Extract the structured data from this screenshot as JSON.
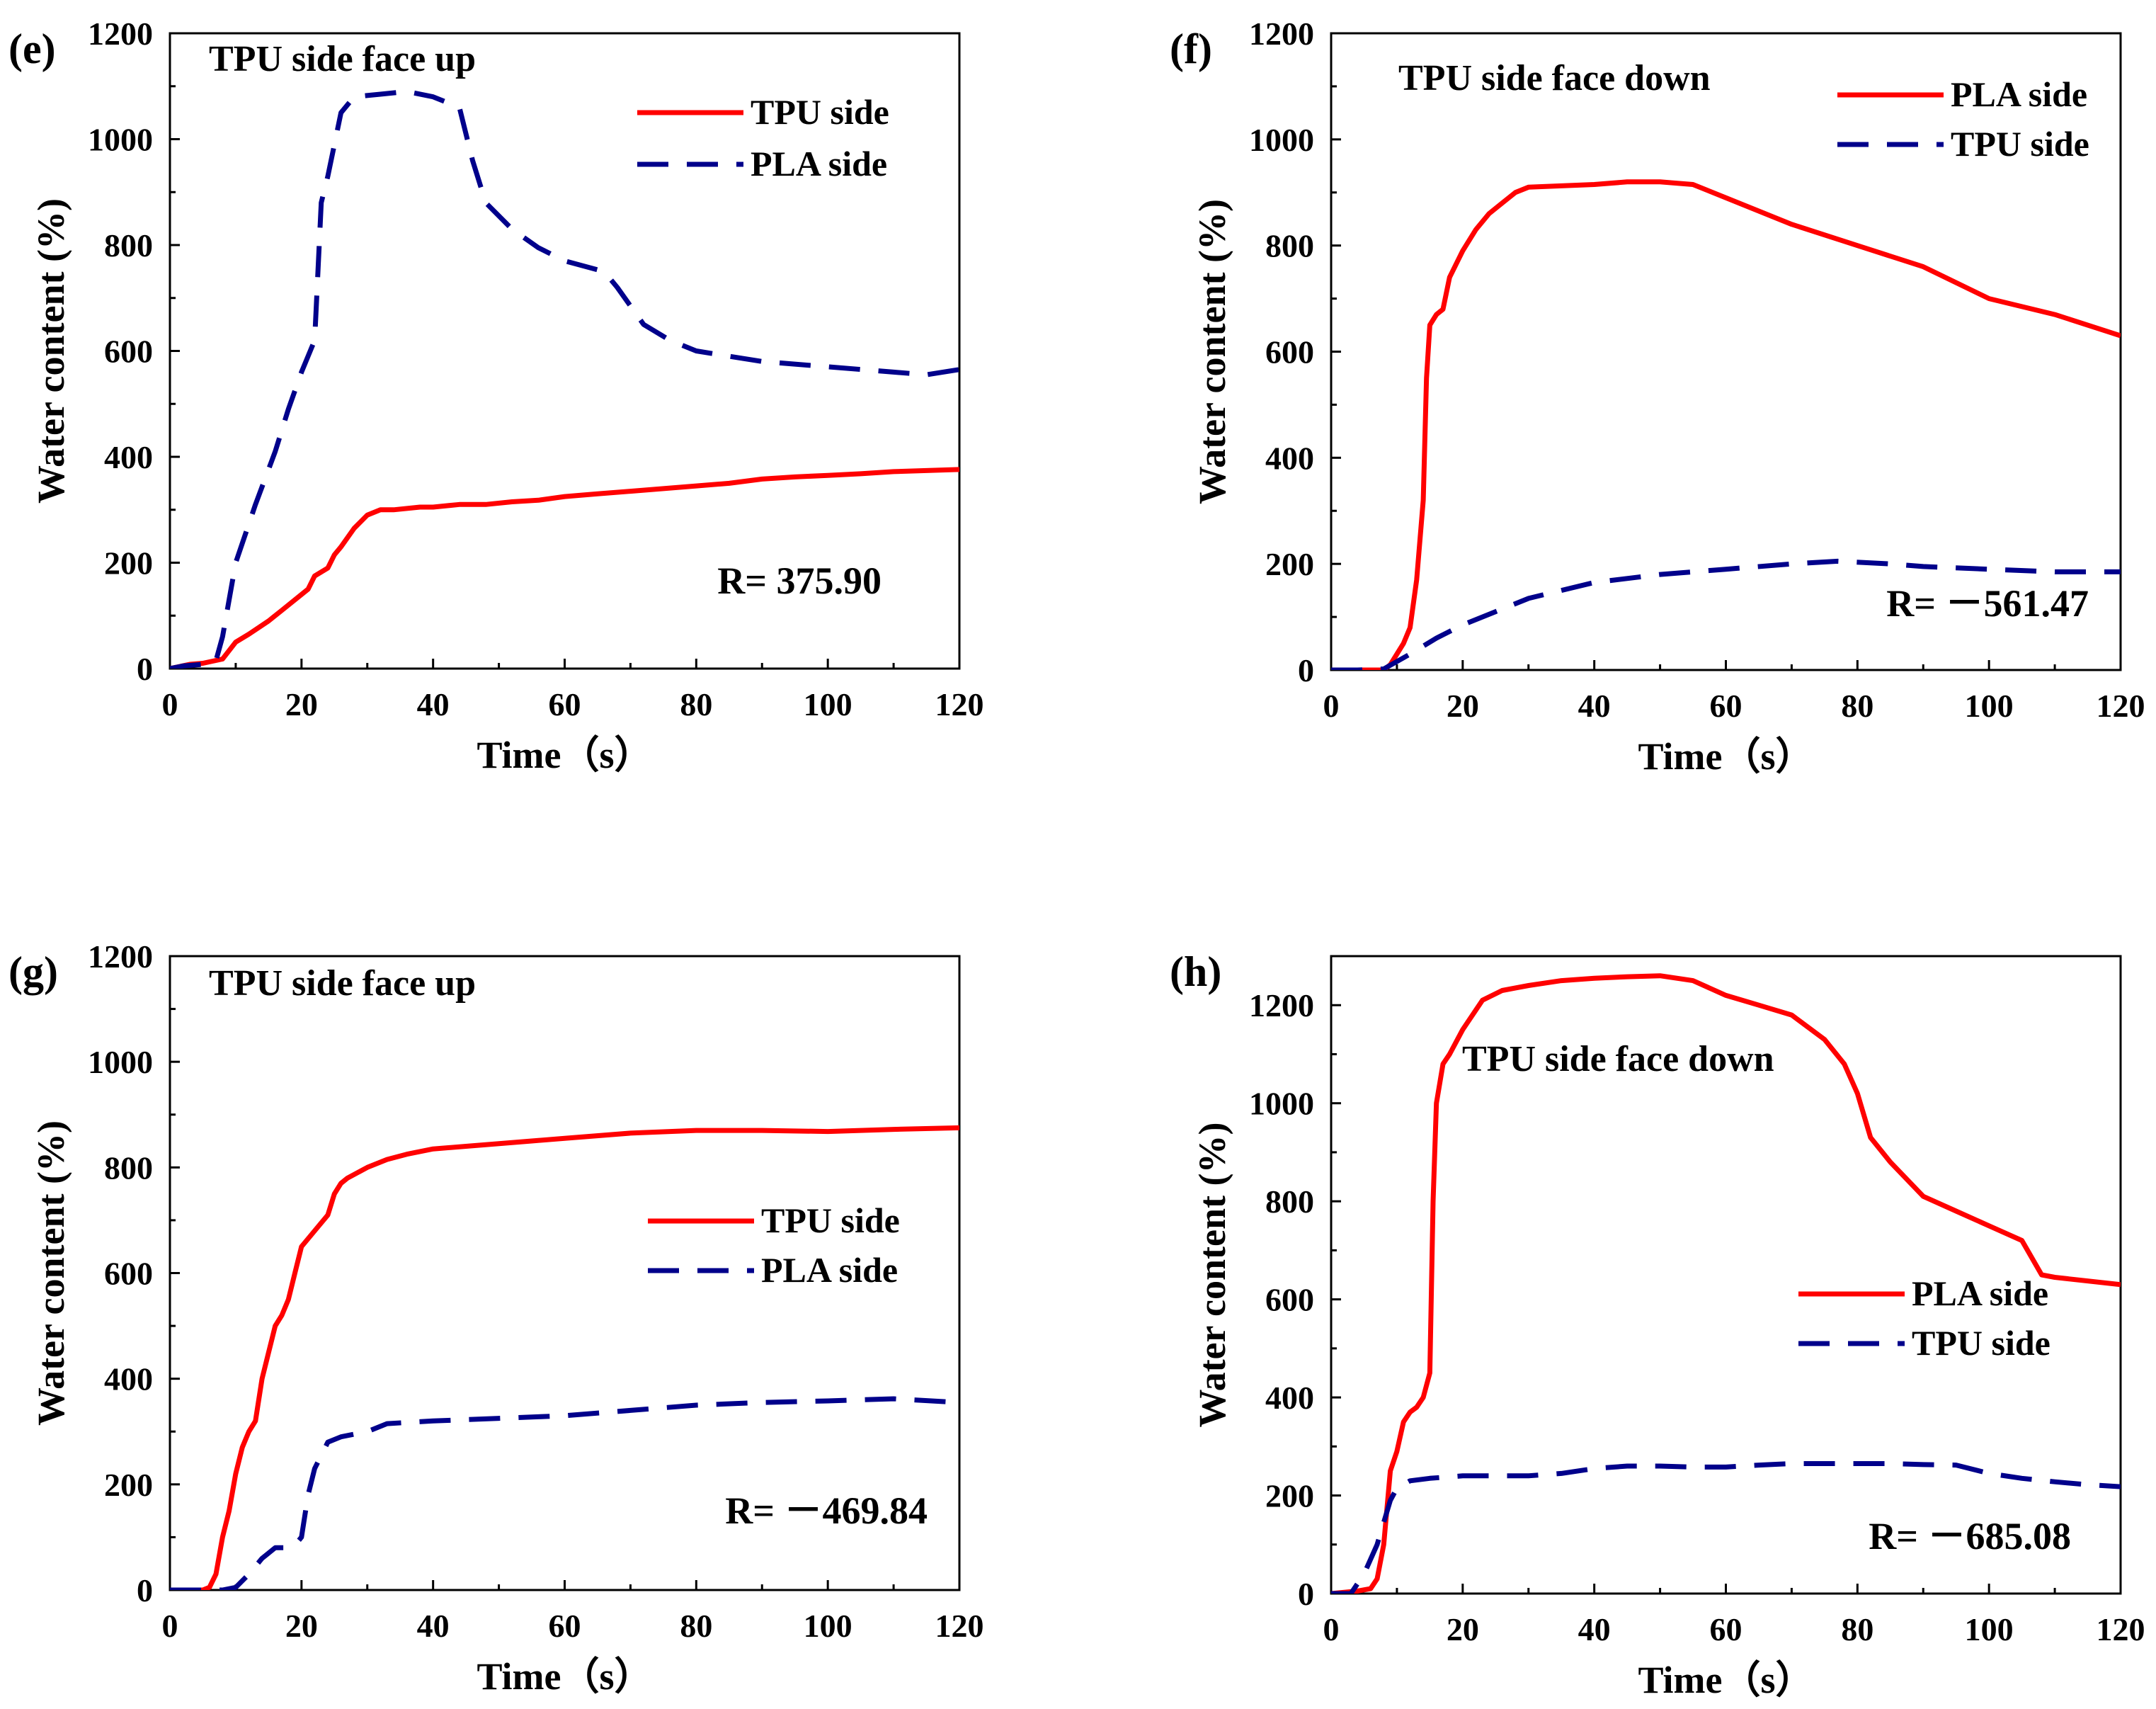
{
  "colors": {
    "red": "#ff0000",
    "blue": "#00008b",
    "axis": "#000000",
    "background": "#ffffff"
  },
  "chart_data": [
    {
      "type": "line",
      "panel_label": "(e)",
      "title": "TPU side face up",
      "xlabel": "Time（s）",
      "ylabel": "Water content (%)",
      "xlim": [
        0,
        120
      ],
      "ylim": [
        0,
        1200
      ],
      "xticks": [
        "0",
        "20",
        "40",
        "60",
        "80",
        "100",
        "120"
      ],
      "yticks": [
        "0",
        "200",
        "400",
        "600",
        "800",
        "1000",
        "1200"
      ],
      "legend_position": "top-right",
      "r_text": "R= 375.90",
      "r_position": "bottom-right",
      "series": [
        {
          "name": "TPU side",
          "color": "red",
          "dash": false,
          "x": [
            0,
            3,
            5,
            8,
            10,
            12,
            15,
            17,
            20,
            21,
            22,
            24,
            25,
            26,
            28,
            30,
            32,
            34,
            38,
            40,
            44,
            48,
            52,
            56,
            60,
            65,
            70,
            75,
            80,
            85,
            90,
            95,
            100,
            105,
            110,
            115,
            120
          ],
          "y": [
            0,
            8,
            10,
            18,
            50,
            65,
            90,
            110,
            140,
            150,
            175,
            190,
            215,
            230,
            265,
            290,
            300,
            300,
            305,
            305,
            310,
            310,
            315,
            318,
            325,
            330,
            335,
            340,
            345,
            350,
            358,
            362,
            365,
            368,
            372,
            374,
            376
          ]
        },
        {
          "name": "PLA side",
          "color": "blue",
          "dash": true,
          "x": [
            0,
            2,
            5,
            7,
            8,
            10,
            13,
            16,
            18,
            20,
            22,
            23,
            24,
            26,
            28,
            32,
            36,
            40,
            44,
            46,
            48,
            52,
            56,
            60,
            66,
            68,
            72,
            76,
            80,
            85,
            90,
            100,
            110,
            115,
            120
          ],
          "y": [
            0,
            5,
            8,
            15,
            60,
            200,
            310,
            410,
            490,
            560,
            620,
            880,
            930,
            1050,
            1080,
            1085,
            1090,
            1080,
            1060,
            960,
            880,
            830,
            795,
            770,
            750,
            720,
            650,
            620,
            600,
            590,
            580,
            570,
            560,
            555,
            565
          ]
        }
      ]
    },
    {
      "type": "line",
      "panel_label": "(f)",
      "title": "TPU side face down",
      "xlabel": "Time（s）",
      "ylabel": "Water content (%)",
      "xlim": [
        0,
        120
      ],
      "ylim": [
        0,
        1200
      ],
      "xticks": [
        "0",
        "20",
        "40",
        "60",
        "80",
        "100",
        "120"
      ],
      "yticks": [
        "0",
        "200",
        "400",
        "600",
        "800",
        "1000",
        "1200"
      ],
      "legend_position": "top-right",
      "r_text": "R= －561.47",
      "r_position": "bottom-right",
      "series": [
        {
          "name": "PLA side",
          "color": "red",
          "dash": false,
          "x": [
            0,
            4,
            6,
            8,
            9,
            10,
            11,
            12,
            13,
            14,
            14.5,
            15,
            16,
            17,
            18,
            20,
            22,
            24,
            26,
            28,
            30,
            40,
            45,
            50,
            55,
            60,
            70,
            80,
            90,
            100,
            110,
            120
          ],
          "y": [
            0,
            0,
            0,
            0,
            10,
            30,
            50,
            80,
            170,
            320,
            550,
            650,
            670,
            680,
            740,
            790,
            830,
            860,
            880,
            900,
            910,
            915,
            920,
            920,
            915,
            890,
            840,
            800,
            760,
            700,
            670,
            630
          ]
        },
        {
          "name": "TPU side",
          "color": "blue",
          "dash": true,
          "x": [
            0,
            4,
            8,
            12,
            16,
            20,
            25,
            30,
            35,
            40,
            50,
            60,
            70,
            77,
            85,
            90,
            100,
            110,
            120
          ],
          "y": [
            0,
            0,
            2,
            30,
            60,
            85,
            110,
            135,
            150,
            165,
            180,
            190,
            200,
            205,
            200,
            195,
            190,
            185,
            185
          ]
        }
      ]
    },
    {
      "type": "line",
      "panel_label": "(g)",
      "title": "TPU side face up",
      "xlabel": "Time（s）",
      "ylabel": "Water content (%)",
      "xlim": [
        0,
        120
      ],
      "ylim": [
        0,
        1200
      ],
      "xticks": [
        "0",
        "20",
        "40",
        "60",
        "80",
        "100",
        "120"
      ],
      "yticks": [
        "0",
        "200",
        "400",
        "600",
        "800",
        "1000",
        "1200"
      ],
      "legend_position": "middle-right",
      "r_text": "R= －469.84",
      "r_position": "bottom-right",
      "series": [
        {
          "name": "TPU side",
          "color": "red",
          "dash": false,
          "x": [
            0,
            3,
            5,
            6,
            7,
            8,
            9,
            10,
            11,
            12,
            13,
            14,
            15,
            16,
            17,
            18,
            19,
            20,
            22,
            24,
            25,
            26,
            27,
            30,
            33,
            36,
            40,
            45,
            50,
            55,
            60,
            70,
            80,
            90,
            100,
            110,
            120
          ],
          "y": [
            0,
            0,
            0,
            5,
            30,
            100,
            150,
            220,
            270,
            300,
            320,
            400,
            450,
            500,
            520,
            550,
            600,
            650,
            680,
            710,
            750,
            770,
            780,
            800,
            815,
            825,
            835,
            840,
            845,
            850,
            855,
            865,
            870,
            870,
            868,
            872,
            875
          ]
        },
        {
          "name": "PLA side",
          "color": "blue",
          "dash": true,
          "x": [
            0,
            5,
            8,
            10,
            12,
            14,
            16,
            18,
            19,
            20,
            21,
            22,
            24,
            26,
            28,
            30,
            33,
            40,
            50,
            60,
            70,
            80,
            90,
            100,
            110,
            120
          ],
          "y": [
            0,
            0,
            0,
            5,
            30,
            60,
            80,
            80,
            85,
            100,
            180,
            230,
            280,
            290,
            295,
            300,
            315,
            320,
            325,
            330,
            340,
            350,
            355,
            358,
            362,
            355
          ]
        }
      ]
    },
    {
      "type": "line",
      "panel_label": "(h)",
      "title": "TPU side face down",
      "xlabel": "Time（s）",
      "ylabel": "Water content (%)",
      "xlim": [
        0,
        120
      ],
      "ylim": [
        0,
        1300
      ],
      "xticks": [
        "0",
        "20",
        "40",
        "60",
        "80",
        "100",
        "120"
      ],
      "yticks": [
        "0",
        "200",
        "400",
        "600",
        "800",
        "1000",
        "1200"
      ],
      "legend_position": "middle-right",
      "r_text": "R= －685.08",
      "r_position": "bottom-right",
      "series": [
        {
          "name": "PLA side",
          "color": "red",
          "dash": false,
          "x": [
            0,
            4,
            6,
            7,
            8,
            9,
            10,
            11,
            12,
            13,
            14,
            15,
            15.5,
            16,
            17,
            18,
            20,
            23,
            26,
            30,
            35,
            40,
            45,
            50,
            55,
            60,
            65,
            70,
            75,
            78,
            80,
            82,
            85,
            90,
            95,
            100,
            105,
            108,
            110,
            120
          ],
          "y": [
            0,
            5,
            10,
            30,
            100,
            250,
            290,
            350,
            370,
            380,
            400,
            450,
            800,
            1000,
            1080,
            1100,
            1150,
            1210,
            1230,
            1240,
            1250,
            1255,
            1258,
            1260,
            1250,
            1220,
            1200,
            1180,
            1130,
            1080,
            1020,
            930,
            880,
            810,
            780,
            750,
            720,
            650,
            645,
            630
          ]
        },
        {
          "name": "TPU side",
          "color": "blue",
          "dash": true,
          "x": [
            0,
            3,
            5,
            7,
            9,
            10,
            12,
            15,
            20,
            25,
            30,
            35,
            40,
            45,
            50,
            55,
            60,
            65,
            70,
            75,
            80,
            85,
            90,
            95,
            100,
            105,
            110,
            115,
            120
          ],
          "y": [
            0,
            0,
            40,
            100,
            190,
            215,
            230,
            235,
            240,
            240,
            240,
            245,
            255,
            260,
            260,
            258,
            258,
            262,
            265,
            265,
            265,
            265,
            263,
            262,
            245,
            235,
            228,
            222,
            218
          ]
        }
      ]
    }
  ]
}
